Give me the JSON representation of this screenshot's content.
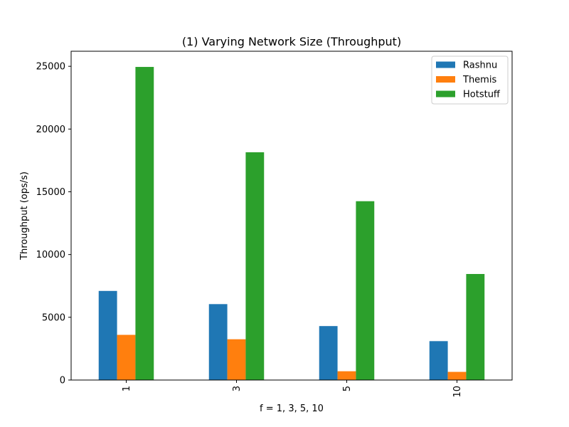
{
  "chart_data": {
    "type": "bar",
    "title": "(1) Varying Network Size (Throughput)",
    "xlabel": "f = 1, 3, 5, 10",
    "ylabel": "Throughput (ops/s)",
    "categories": [
      "1",
      "3",
      "5",
      "10"
    ],
    "series": [
      {
        "name": "Rashnu",
        "color": "#1f77b4",
        "values": [
          7100,
          6050,
          4300,
          3100
        ]
      },
      {
        "name": "Themis",
        "color": "#ff7f0e",
        "values": [
          3600,
          3250,
          700,
          650
        ]
      },
      {
        "name": "Hotstuff",
        "color": "#2ca02c",
        "values": [
          24950,
          18150,
          14250,
          8450
        ]
      }
    ],
    "yticks": [
      0,
      5000,
      10000,
      15000,
      20000,
      25000
    ],
    "ylim": [
      0,
      26200
    ],
    "legend_position": "top-right",
    "grid": false
  }
}
